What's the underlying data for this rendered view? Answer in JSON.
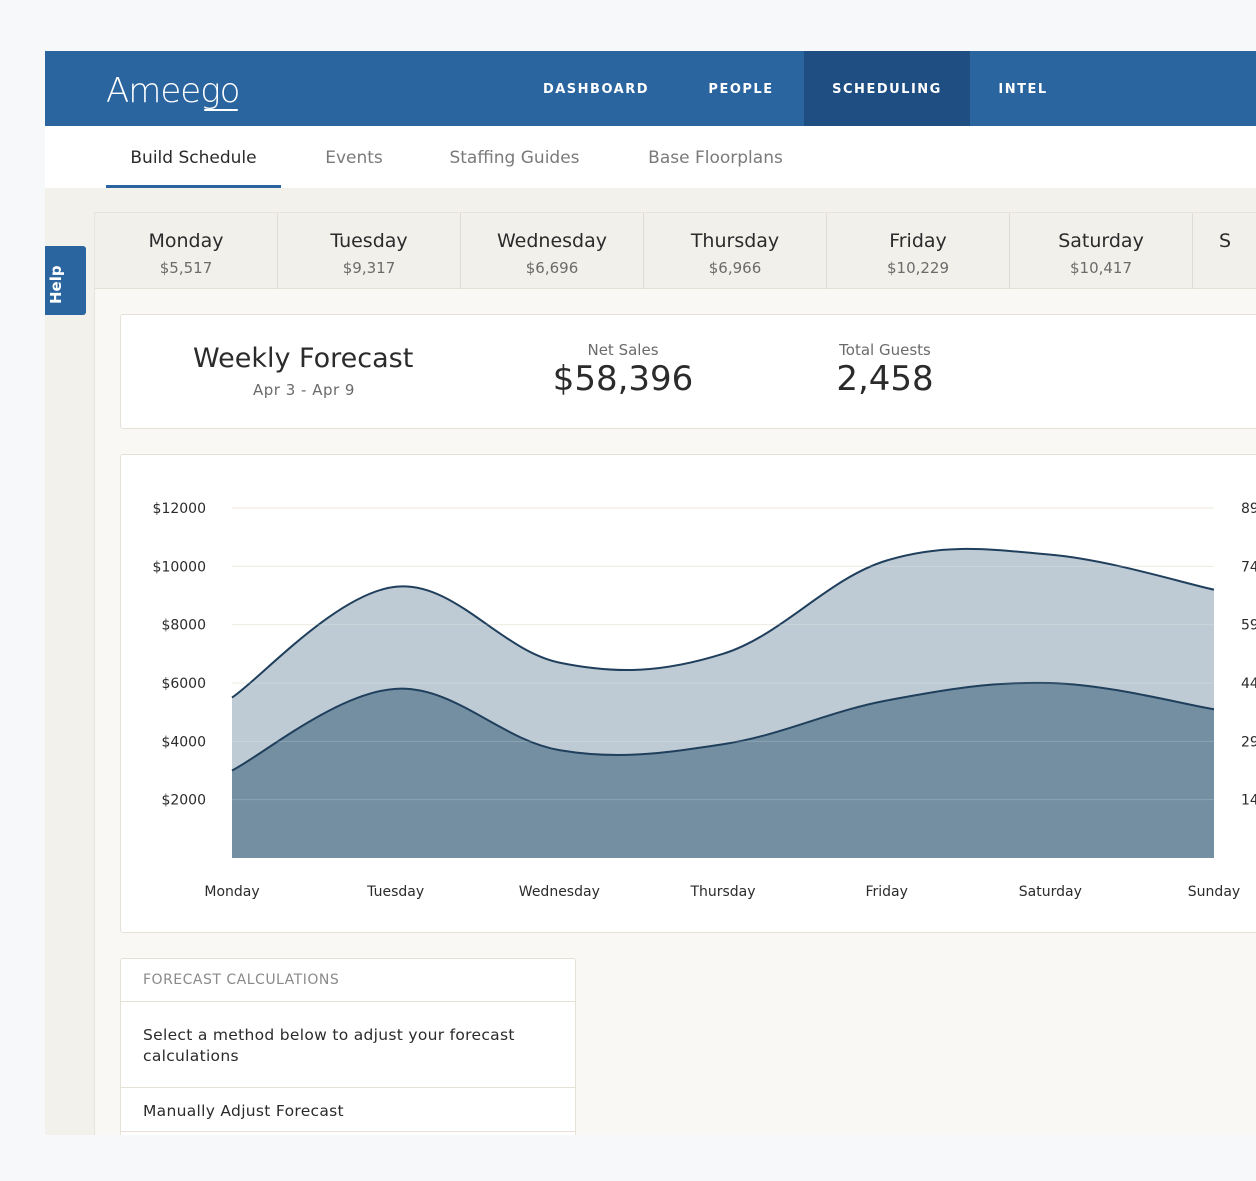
{
  "app": {
    "logo": "Ameego"
  },
  "topnav": {
    "items": [
      {
        "label": "DASHBOARD"
      },
      {
        "label": "PEOPLE"
      },
      {
        "label": "SCHEDULING"
      },
      {
        "label": "INTEL"
      }
    ],
    "active": "SCHEDULING"
  },
  "subnav": {
    "tabs": [
      {
        "label": "Build Schedule"
      },
      {
        "label": "Events"
      },
      {
        "label": "Staffing Guides"
      },
      {
        "label": "Base Floorplans"
      }
    ],
    "active": "Build Schedule"
  },
  "help": {
    "label": "Help"
  },
  "days": [
    {
      "name": "Monday",
      "amount": "$5,517"
    },
    {
      "name": "Tuesday",
      "amount": "$9,317"
    },
    {
      "name": "Wednesday",
      "amount": "$6,696"
    },
    {
      "name": "Thursday",
      "amount": "$6,966"
    },
    {
      "name": "Friday",
      "amount": "$10,229"
    },
    {
      "name": "Saturday",
      "amount": "$10,417"
    },
    {
      "name": "S",
      "amount": ""
    }
  ],
  "forecast": {
    "title": "Weekly Forecast",
    "range": "Apr 3 - Apr 9",
    "net_sales_label": "Net Sales",
    "net_sales_value": "$58,396",
    "total_guests_label": "Total Guests",
    "total_guests_value": "2,458"
  },
  "chart_data": {
    "type": "area",
    "categories": [
      "Monday",
      "Tuesday",
      "Wednesday",
      "Thursday",
      "Friday",
      "Saturday",
      "Sunday"
    ],
    "ylim": [
      0,
      12000
    ],
    "y_ticks": [
      "$12000",
      "$10000",
      "$8000",
      "$6000",
      "$4000",
      "$2000"
    ],
    "y2_ticks": [
      "89",
      "74",
      "59",
      "44",
      "29",
      "14"
    ],
    "series": [
      {
        "values": [
          5500,
          9300,
          6700,
          7000,
          10200,
          10400,
          9200
        ],
        "color": "#bfcbd4",
        "line": "#1f3f5c"
      },
      {
        "values": [
          3000,
          5800,
          3700,
          3900,
          5400,
          6000,
          5100
        ],
        "color": "#738fa1",
        "line": "#1f3f5c"
      }
    ],
    "grid": true
  },
  "calc": {
    "heading": "FORECAST CALCULATIONS",
    "description": "Select a method below to adjust your forecast calculations",
    "option_manual": "Manually Adjust Forecast"
  }
}
